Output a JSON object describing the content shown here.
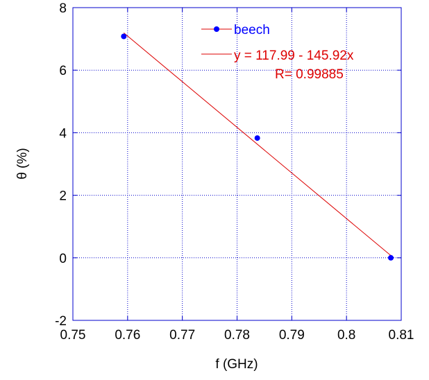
{
  "chart_data": {
    "type": "scatter",
    "xlabel": "f (GHz)",
    "ylabel": "θ (%)",
    "xlim": [
      0.75,
      0.81
    ],
    "ylim": [
      -2,
      8
    ],
    "x_ticks": [
      "0.75",
      "0.76",
      "0.77",
      "0.78",
      "0.79",
      "0.8",
      "0.81"
    ],
    "y_ticks": [
      "-2",
      "0",
      "2",
      "4",
      "6",
      "8"
    ],
    "grid": true,
    "legend_position": "top-right",
    "series": [
      {
        "name": "beech",
        "color": "#0000ff",
        "points": [
          {
            "x": 0.7593,
            "y": 7.08
          },
          {
            "x": 0.7837,
            "y": 3.83
          },
          {
            "x": 0.8081,
            "y": 0.0
          }
        ]
      }
    ],
    "fit": {
      "color": "#dd0000",
      "equation": "y = 117.99 - 145.92x",
      "r_label": "R= 0.99885",
      "intercept": 117.99,
      "slope": -145.92,
      "x_range": [
        0.7593,
        0.8081
      ]
    }
  }
}
